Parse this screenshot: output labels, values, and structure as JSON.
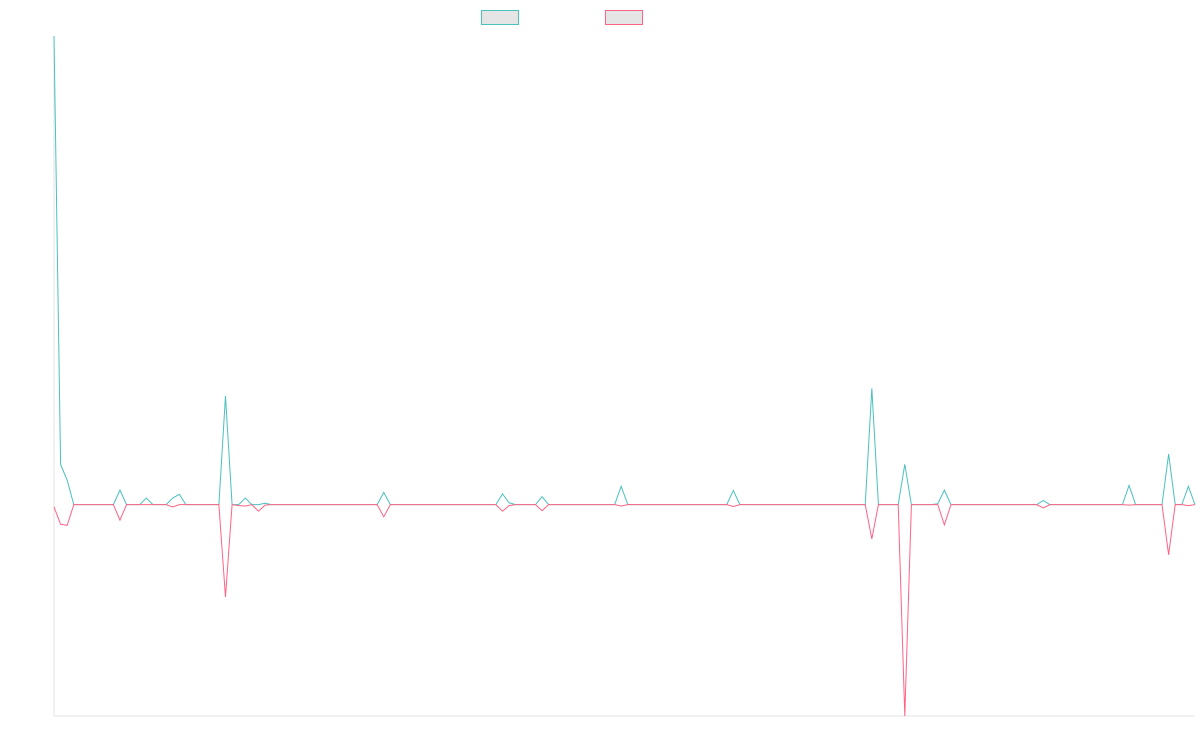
{
  "chart_data": {
    "type": "line",
    "title": "",
    "xlabel": "",
    "ylabel": "",
    "ylim": [
      -45.1,
      100
    ],
    "grid": false,
    "legend": "top-center",
    "series": [
      {
        "color": "#4bc0c0",
        "values": [
          100,
          8.6,
          5.2,
          0,
          0,
          0,
          0,
          0,
          0,
          0,
          3.1,
          0,
          0,
          0,
          1.4,
          0,
          0,
          0,
          1.4,
          2.2,
          0,
          0,
          0,
          0,
          0,
          0,
          23.2,
          0,
          0,
          1.4,
          0,
          0,
          0.3,
          0,
          0,
          0,
          0,
          0,
          0,
          0,
          0,
          0,
          0,
          0,
          0,
          0,
          0,
          0,
          0,
          0,
          2.6,
          0,
          0,
          0,
          0,
          0,
          0,
          0,
          0,
          0,
          0,
          0,
          0,
          0,
          0,
          0,
          0,
          0,
          2.3,
          0.4,
          0,
          0,
          0,
          0,
          1.7,
          0,
          0,
          0,
          0,
          0,
          0,
          0,
          0,
          0,
          0,
          0,
          3.9,
          0,
          0,
          0,
          0,
          0,
          0,
          0,
          0,
          0,
          0,
          0,
          0,
          0,
          0,
          0,
          0,
          3.0,
          0,
          0,
          0,
          0,
          0,
          0,
          0,
          0,
          0,
          0,
          0,
          0,
          0,
          0,
          0,
          0,
          0,
          0,
          0,
          0,
          24.8,
          0,
          0,
          0,
          0,
          8.6,
          0,
          0,
          0,
          0,
          0.2,
          3.1,
          0,
          0,
          0,
          0,
          0,
          0,
          0,
          0,
          0,
          0,
          0,
          0,
          0,
          0,
          0.9,
          0,
          0,
          0,
          0,
          0,
          0,
          0,
          0,
          0,
          0,
          0,
          0,
          4.1,
          0,
          0,
          0,
          0,
          0,
          10.8,
          0,
          0,
          3.9,
          0
        ]
      },
      {
        "color": "#ff6384",
        "values": [
          -0.5,
          -4.2,
          -4.4,
          0,
          0,
          0,
          0,
          0,
          0,
          0,
          -3.3,
          0,
          0,
          0,
          0,
          0,
          0,
          0,
          -0.5,
          0,
          0,
          0,
          0,
          0,
          0,
          0,
          -19.7,
          0,
          -0.2,
          -0.3,
          0,
          -1.4,
          -0.1,
          0,
          0,
          0,
          0,
          0,
          0,
          0,
          0,
          0,
          0,
          0,
          0,
          0,
          0,
          0,
          0,
          0,
          -2.6,
          0,
          0,
          0,
          0,
          0,
          0,
          0,
          0,
          0,
          0,
          0,
          0,
          0,
          0,
          0,
          0,
          0,
          -1.4,
          -0.2,
          0,
          0,
          0,
          0,
          -1.3,
          0,
          0,
          0,
          0,
          0,
          0,
          0,
          0,
          0,
          0,
          0,
          -0.3,
          0,
          0,
          0,
          0,
          0,
          0,
          0,
          0,
          0,
          0,
          0,
          0,
          0,
          0,
          0,
          0,
          -0.4,
          0,
          0,
          0,
          0,
          0,
          0,
          0,
          0,
          0,
          0,
          0,
          0,
          0,
          0,
          0,
          0,
          0,
          0,
          0,
          0,
          -7.3,
          0,
          0,
          0,
          0,
          -45.1,
          0,
          0,
          0,
          0,
          0,
          -4.3,
          0,
          0,
          0,
          0,
          0,
          0,
          0,
          0,
          0,
          0,
          0,
          0,
          0,
          0,
          -0.7,
          0,
          0,
          0,
          0,
          0,
          0,
          0,
          0,
          0,
          0,
          0,
          0,
          -0.1,
          0,
          0,
          0,
          0,
          0,
          -10.7,
          0,
          0,
          -0.2,
          0
        ]
      }
    ]
  }
}
